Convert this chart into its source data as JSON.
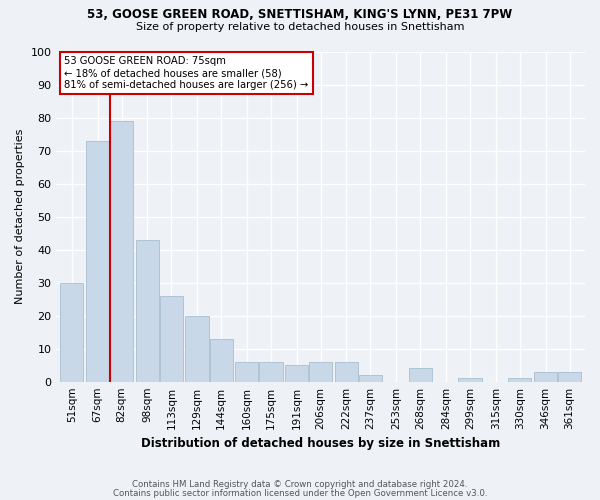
{
  "title1": "53, GOOSE GREEN ROAD, SNETTISHAM, KING'S LYNN, PE31 7PW",
  "title2": "Size of property relative to detached houses in Snettisham",
  "xlabel": "Distribution of detached houses by size in Snettisham",
  "ylabel": "Number of detached properties",
  "bin_labels": [
    "51sqm",
    "67sqm",
    "82sqm",
    "98sqm",
    "113sqm",
    "129sqm",
    "144sqm",
    "160sqm",
    "175sqm",
    "191sqm",
    "206sqm",
    "222sqm",
    "237sqm",
    "253sqm",
    "268sqm",
    "284sqm",
    "299sqm",
    "315sqm",
    "330sqm",
    "346sqm",
    "361sqm"
  ],
  "bar_values": [
    30,
    73,
    79,
    43,
    26,
    20,
    13,
    6,
    6,
    5,
    6,
    6,
    2,
    0,
    4,
    0,
    1,
    0,
    1,
    3,
    3
  ],
  "bar_color": "#c8d8e8",
  "bar_edge_color": "#a8bfcf",
  "vline_x": 75,
  "vline_color": "#cc0000",
  "annotation_title": "53 GOOSE GREEN ROAD: 75sqm",
  "annotation_line1": "← 18% of detached houses are smaller (58)",
  "annotation_line2": "81% of semi-detached houses are larger (256) →",
  "annotation_box_color": "#ffffff",
  "annotation_box_edge": "#cc0000",
  "ylim": [
    0,
    100
  ],
  "background_color": "#eef2f7",
  "footer1": "Contains HM Land Registry data © Crown copyright and database right 2024.",
  "footer2": "Contains public sector information licensed under the Open Government Licence v3.0."
}
